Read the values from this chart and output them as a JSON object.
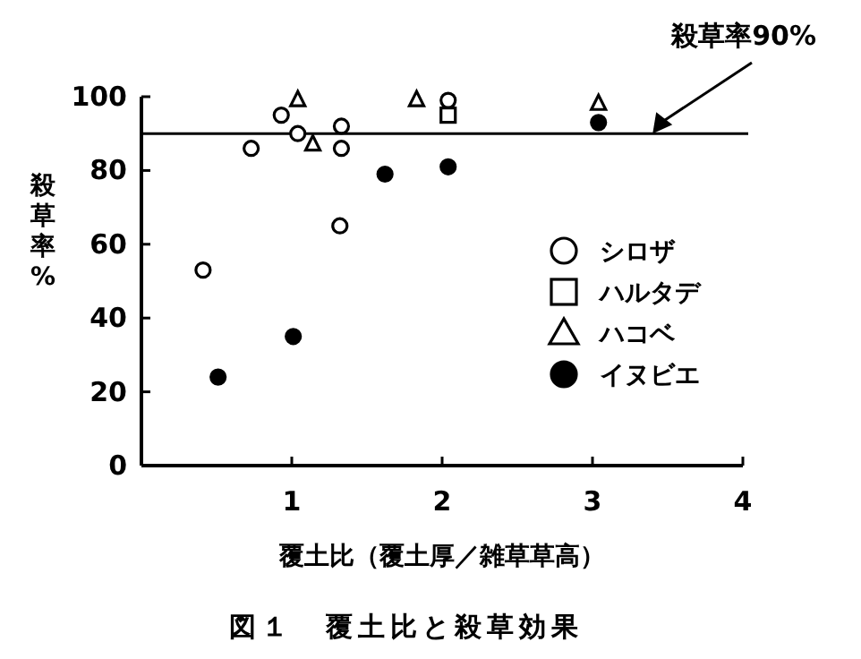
{
  "chart_data": {
    "type": "scatter",
    "xlabel": "覆土比（覆土厚／雑草草高）",
    "ylabel": "殺草率%",
    "annotations": [
      "図１　覆土比と殺草効果"
    ],
    "xlim": [
      0,
      4
    ],
    "xticks": [
      1,
      2,
      3,
      4
    ],
    "ylim": [
      0,
      100
    ],
    "yticks": [
      0,
      20,
      40,
      60,
      80,
      100
    ],
    "grid": false,
    "legend": "right",
    "ref_lines": [
      {
        "axis": "y",
        "value": 90,
        "label": "殺草率90%",
        "color": "#000000",
        "line_style": "solid"
      }
    ],
    "series": [
      {
        "name": "シロザ",
        "color": "#ffffff",
        "marker": "circle",
        "x": [
          0.41,
          0.73,
          0.93,
          1.04,
          1.32,
          1.33,
          1.33,
          2.04
        ],
        "values": [
          53,
          86,
          95,
          90,
          65,
          92,
          86,
          99
        ]
      },
      {
        "name": "ハルタデ",
        "color": "#ffffff",
        "marker": "square",
        "x": [
          2.04
        ],
        "values": [
          95
        ]
      },
      {
        "name": "ハコベ",
        "color": "#ffffff",
        "marker": "triangle",
        "x": [
          1.04,
          1.14,
          1.83,
          3.04
        ],
        "values": [
          99,
          87,
          99,
          98
        ]
      },
      {
        "name": "イヌビエ",
        "color": "#000000",
        "marker": "circle",
        "x": [
          0.51,
          1.01,
          1.62,
          2.04,
          3.04
        ],
        "values": [
          24,
          35,
          79,
          81,
          93
        ]
      }
    ]
  }
}
